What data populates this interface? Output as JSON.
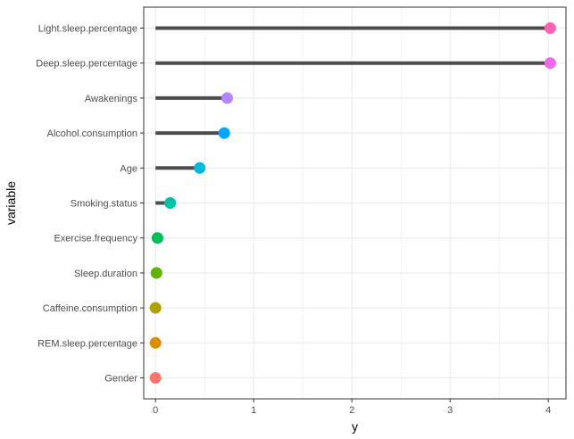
{
  "chart_data": {
    "type": "lollipop",
    "xlabel": "y",
    "ylabel": "variable",
    "xlim": [
      -0.12,
      4.18
    ],
    "x_ticks": [
      0,
      1,
      2,
      3,
      4
    ],
    "x_tick_labels": [
      "0",
      "1",
      "2",
      "3",
      "4"
    ],
    "grid": true,
    "categories": [
      "Gender",
      "REM.sleep.percentage",
      "Caffeine.consumption",
      "Sleep.duration",
      "Exercise.frequency",
      "Smoking.status",
      "Age",
      "Alcohol.consumption",
      "Awakenings",
      "Deep.sleep.percentage",
      "Light.sleep.percentage"
    ],
    "values": [
      0.0,
      0.0,
      0.0,
      0.01,
      0.02,
      0.15,
      0.45,
      0.7,
      0.73,
      4.02,
      4.02
    ],
    "colors": [
      "#F8766D",
      "#DB8E00",
      "#AEA200",
      "#64B200",
      "#00BD5C",
      "#00C1A7",
      "#00BADE",
      "#00A6FF",
      "#B385FF",
      "#EF67EB",
      "#FF63B6"
    ],
    "stem_color": "#4d4d4d",
    "panel_border_color": "#333333",
    "grid_color": "#ebebeb"
  }
}
